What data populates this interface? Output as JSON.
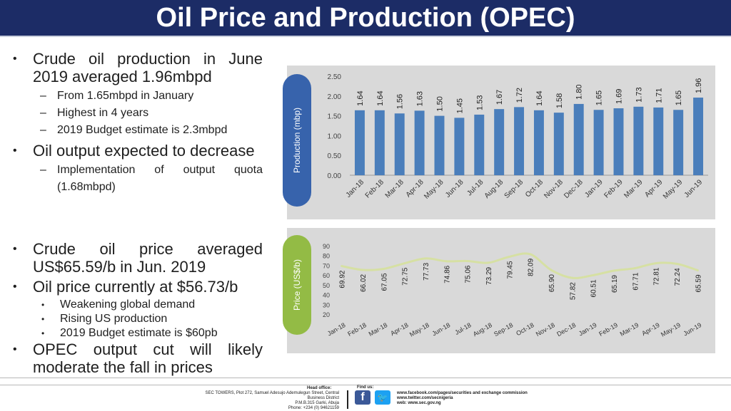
{
  "slide": {
    "title": "Oil Price and Production (OPEC)",
    "bullets_top": [
      {
        "text": "Crude oil production in June 2019 averaged 1.96mbpd",
        "sub": [
          "From 1.65mbpd in January",
          "Highest in 4 years",
          "2019 Budget estimate is 2.3mbpd"
        ]
      },
      {
        "text": "Oil output expected to decrease",
        "sub": [
          "Implementation of output quota (1.68mbpd)"
        ]
      }
    ],
    "bullets_bottom": [
      {
        "text": "Crude oil price averaged US$65.59/b in Jun. 2019",
        "sub": []
      },
      {
        "text": "Oil price currently at $56.73/b",
        "sub": [
          "Weakening global demand",
          "Rising US production",
          "2019 Budget estimate is $60pb"
        ]
      },
      {
        "text": "OPEC output cut will likely moderate the fall in prices",
        "sub": []
      }
    ]
  },
  "footer": {
    "head_office_label": "Head office:",
    "address_line1": "SEC TOWERS, Plot 272, Samuel Adesujo Ademulegun Street, Central",
    "address_line2": "Business District",
    "address_line3": "P.M.B.315 Garki, Abuja",
    "phone": "Phone: +234 (0) 94621159",
    "find_us_label": "Find us:",
    "link_facebook": "www.facebook.com/pages/securities and exchange commission",
    "link_twitter": "www.twitter.com/secnigeria",
    "link_web": "web: www.sec.gov.ng"
  },
  "colors": {
    "title_bg": "#1c2c66",
    "bar": "#4a7ebb",
    "line": "#d6e0a3",
    "axis_pill_prod": "#3763ac",
    "axis_pill_price": "#93bb45"
  },
  "chart_data": [
    {
      "type": "bar",
      "title": "",
      "ylabel": "Production (mbp)",
      "xlabel": "",
      "ylim": [
        0,
        2.5
      ],
      "yticks": [
        "0.00",
        "0.50",
        "1.00",
        "1.50",
        "2.00",
        "2.50"
      ],
      "categories": [
        "Jan-18",
        "Feb-18",
        "Mar-18",
        "Apr-18",
        "May-18",
        "Jun-18",
        "Jul-18",
        "Aug-18",
        "Sep-18",
        "Oct-18",
        "Nov-18",
        "Dec-18",
        "Jan-19",
        "Feb-19",
        "Mar-19",
        "Apr-19",
        "May-19",
        "Jun-19"
      ],
      "values": [
        1.64,
        1.64,
        1.56,
        1.63,
        1.5,
        1.45,
        1.53,
        1.67,
        1.72,
        1.64,
        1.58,
        1.8,
        1.65,
        1.69,
        1.73,
        1.71,
        1.65,
        1.96
      ],
      "labels": [
        "1.64",
        "1.64",
        "1.56",
        "1.63",
        "1.50",
        "1.45",
        "1.53",
        "1.67",
        "1.72",
        "1.64",
        "1.58",
        "1.80",
        "1.65",
        "1.69",
        "1.73",
        "1.71",
        "1.65",
        "1.96"
      ]
    },
    {
      "type": "line",
      "title": "",
      "ylabel": "Price (US$/b)",
      "xlabel": "",
      "ylim": [
        20,
        90
      ],
      "yticks": [
        "20",
        "30",
        "40",
        "50",
        "60",
        "70",
        "80",
        "90"
      ],
      "categories": [
        "Jan-18",
        "Feb-18",
        "Mar-18",
        "Apr-18",
        "May-18",
        "Jun-18",
        "Jul-18",
        "Aug-18",
        "Sep-18",
        "Oct-18",
        "Nov-18",
        "Dec-18",
        "Jan-19",
        "Feb-19",
        "Mar-19",
        "Apr-19",
        "May-19",
        "Jun-19"
      ],
      "values": [
        69.92,
        66.02,
        67.05,
        72.75,
        77.73,
        74.86,
        75.06,
        73.29,
        79.45,
        82.09,
        65.9,
        57.82,
        60.51,
        65.19,
        67.71,
        72.81,
        72.24,
        65.59
      ],
      "labels": [
        "69.92",
        "66.02",
        "67.05",
        "72.75",
        "77.73",
        "74.86",
        "75.06",
        "73.29",
        "79.45",
        "82.09",
        "65.90",
        "57.82",
        "60.51",
        "65.19",
        "67.71",
        "72.81",
        "72.24",
        "65.59"
      ]
    }
  ]
}
